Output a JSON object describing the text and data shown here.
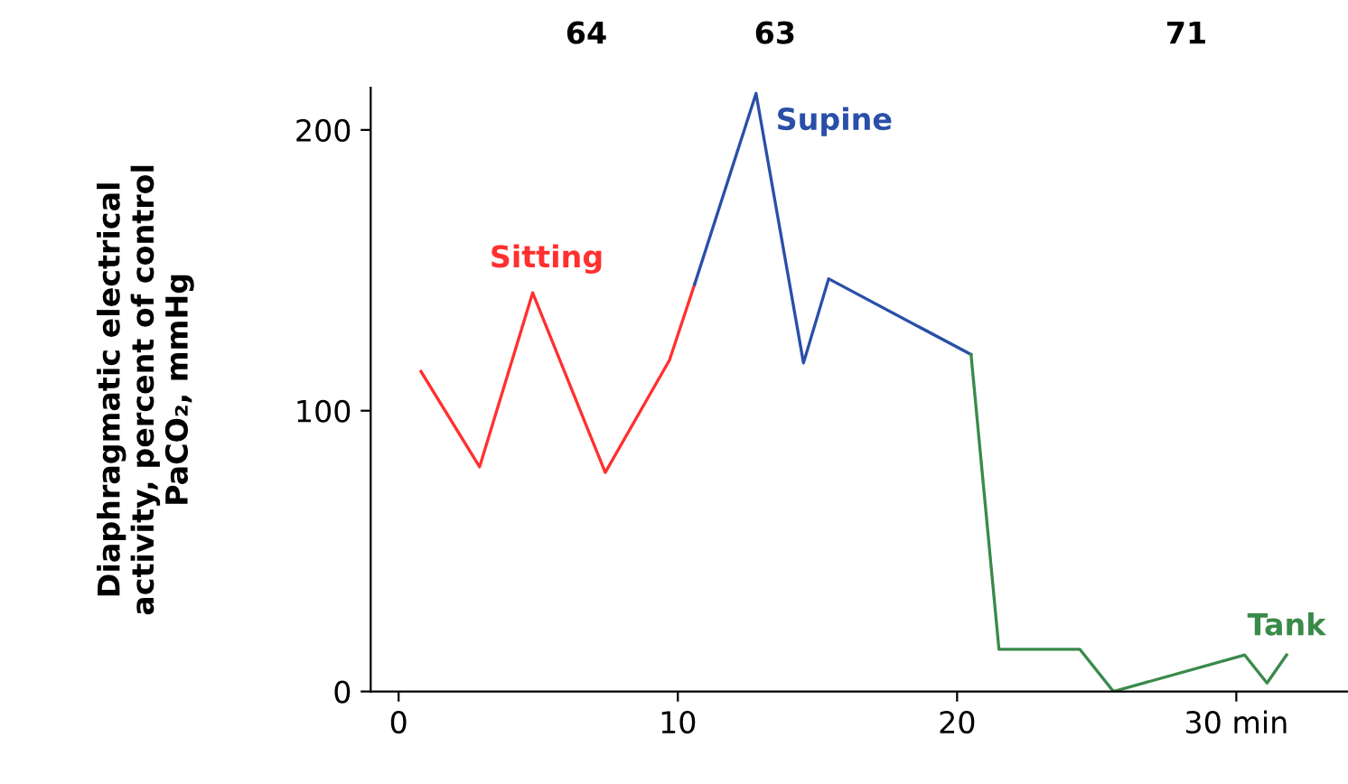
{
  "chart_data": {
    "type": "line",
    "ylabel": "Diaphragmatic electrical\nactivity, percent of control\nPaCO₂, mmHg",
    "series": [
      {
        "name": "Sitting",
        "color": "#ff3030",
        "x": [
          0.8,
          2.9,
          4.8,
          7.4,
          9.7,
          10.6
        ],
        "values": [
          114,
          80,
          142,
          78,
          118,
          145
        ]
      },
      {
        "name": "Supine",
        "color": "#2a4fa8",
        "x": [
          10.6,
          12.8,
          14.5,
          15.4,
          20.5
        ],
        "values": [
          145,
          213,
          117,
          147,
          120
        ]
      },
      {
        "name": "Tank",
        "color": "#3a8a4a",
        "x": [
          20.5,
          21.5,
          24.4,
          25.6,
          30.3,
          31.1,
          31.8
        ],
        "values": [
          120,
          15,
          15,
          0,
          13,
          3,
          13
        ]
      }
    ],
    "annotations": [
      "64",
      "63",
      "71"
    ],
    "xlim": [
      -1,
      34
    ],
    "ylim": [
      0,
      215
    ],
    "xticks": [
      0,
      10,
      20,
      {
        "value": 30,
        "label": "30 min"
      }
    ],
    "yticks": [
      0,
      100,
      200
    ],
    "grid": false,
    "legend": false,
    "marker": "none",
    "line_style": "solid"
  }
}
